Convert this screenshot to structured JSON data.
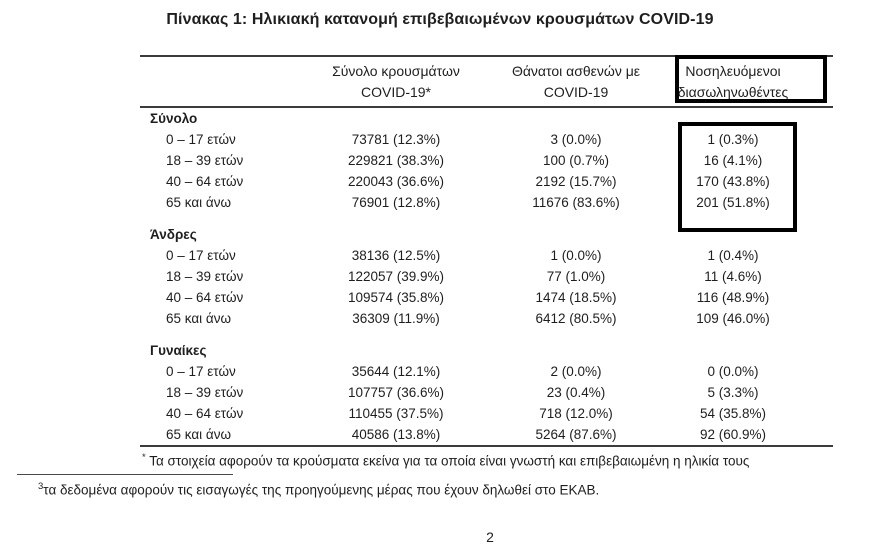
{
  "title": "Πίνακας 1: Ηλικιακή κατανομή επιβεβαιωμένων κρουσμάτων COVID-19",
  "table": {
    "columns": [
      {
        "line1": "Σύνολο κρουσμάτων",
        "line2": "COVID-19*"
      },
      {
        "line1": "Θάνατοι ασθενών με",
        "line2": "COVID-19"
      },
      {
        "line1": "Νοσηλευόμενοι",
        "line2": "διασωληνωθέντες",
        "highlighted": true
      }
    ],
    "sections": [
      {
        "label": "Σύνολο",
        "rows": [
          {
            "age": "0 – 17 ετών",
            "cases": "73781 (12.3%)",
            "deaths": "3 (0.0%)",
            "intubated": "1 (0.3%)"
          },
          {
            "age": "18 – 39 ετών",
            "cases": "229821 (38.3%)",
            "deaths": "100 (0.7%)",
            "intubated": "16 (4.1%)"
          },
          {
            "age": "40 – 64 ετών",
            "cases": "220043 (36.6%)",
            "deaths": "2192 (15.7%)",
            "intubated": "170 (43.8%)"
          },
          {
            "age": "65 και άνω",
            "cases": "76901 (12.8%)",
            "deaths": "11676 (83.6%)",
            "intubated": "201 (51.8%)"
          }
        ]
      },
      {
        "label": "Άνδρες",
        "rows": [
          {
            "age": "0 – 17 ετών",
            "cases": "38136 (12.5%)",
            "deaths": "1 (0.0%)",
            "intubated": "1 (0.4%)"
          },
          {
            "age": "18 – 39 ετών",
            "cases": "122057 (39.9%)",
            "deaths": "77 (1.0%)",
            "intubated": "11 (4.6%)"
          },
          {
            "age": "40 – 64 ετών",
            "cases": "109574 (35.8%)",
            "deaths": "1474 (18.5%)",
            "intubated": "116 (48.9%)"
          },
          {
            "age": "65 και άνω",
            "cases": "36309 (11.9%)",
            "deaths": "6412 (80.5%)",
            "intubated": "109 (46.0%)"
          }
        ]
      },
      {
        "label": "Γυναίκες",
        "rows": [
          {
            "age": "0 – 17 ετών",
            "cases": "35644 (12.1%)",
            "deaths": "2 (0.0%)",
            "intubated": "0 (0.0%)"
          },
          {
            "age": "18 – 39 ετών",
            "cases": "107757 (36.6%)",
            "deaths": "23 (0.4%)",
            "intubated": "5 (3.3%)"
          },
          {
            "age": "40 – 64 ετών",
            "cases": "110455 (37.5%)",
            "deaths": "718 (12.0%)",
            "intubated": "54 (35.8%)"
          },
          {
            "age": "65 και άνω",
            "cases": "40586 (13.8%)",
            "deaths": "5264 (87.6%)",
            "intubated": "92 (60.9%)"
          }
        ]
      }
    ]
  },
  "footnotes": {
    "table_note_marker": "*",
    "table_note": "Τα στοιχεία αφορούν τα κρούσματα εκείνα για τα οποία είναι γνωστή και επιβεβαιωμένη η ηλικία τους",
    "page_note_marker": "3",
    "page_note": "τα δεδομένα αφορούν τις εισαγωγές της προηγούμενης μέρας που έχουν δηλωθεί στο ΕΚΑΒ."
  },
  "page_number": "2",
  "colors": {
    "text": "#1e1e1e",
    "rule": "#3b3b3b",
    "highlight_box": "#000000"
  }
}
